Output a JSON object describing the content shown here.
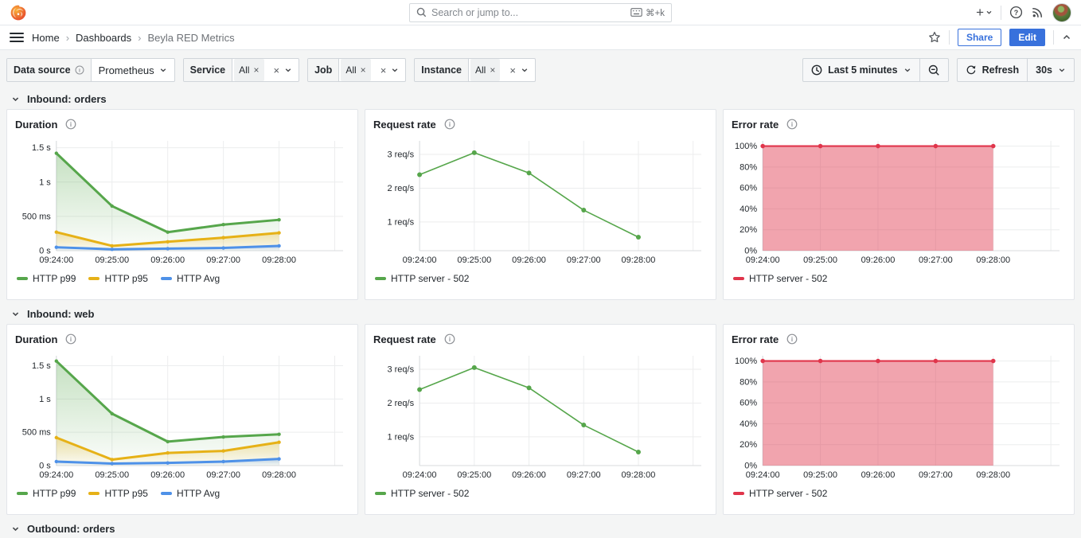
{
  "colors": {
    "accent_blue": "#3871DC",
    "brand_orange": "#F05A28"
  },
  "icons": {
    "close": "×",
    "plus": "+",
    "help": "?",
    "shortcut_cmd": "⌘+k"
  },
  "topbar": {
    "search_placeholder": "Search or jump to...",
    "search_shortcut": "⌘+k"
  },
  "breadcrumb": {
    "items": [
      "Home",
      "Dashboards",
      "Beyla RED Metrics"
    ],
    "separator": "›"
  },
  "actions": {
    "share": "Share",
    "edit": "Edit"
  },
  "filterbar": {
    "datasource": {
      "label": "Data source",
      "value": "Prometheus"
    },
    "variables": [
      {
        "label": "Service",
        "chip": "All"
      },
      {
        "label": "Job",
        "chip": "All"
      },
      {
        "label": "Instance",
        "chip": "All"
      }
    ],
    "time": {
      "range": "Last 5 minutes",
      "refresh": "Refresh",
      "interval": "30s"
    }
  },
  "rows": [
    {
      "title": "Inbound: orders",
      "charts": [
        0,
        1,
        2
      ]
    },
    {
      "title": "Inbound: web",
      "charts": [
        3,
        4,
        5
      ]
    },
    {
      "title": "Outbound: orders",
      "charts": []
    }
  ],
  "chart_data": [
    {
      "type": "line",
      "title": "Duration",
      "row": "Inbound: orders",
      "x": [
        "09:24:00",
        "09:25:00",
        "09:26:00",
        "09:27:00",
        "09:28:00"
      ],
      "series": [
        {
          "name": "HTTP p99",
          "color": "#56A64B",
          "values": [
            1.42,
            0.65,
            0.27,
            0.38,
            0.45
          ]
        },
        {
          "name": "HTTP p95",
          "color": "#E6B117",
          "values": [
            0.27,
            0.07,
            0.13,
            0.19,
            0.26
          ]
        },
        {
          "name": "HTTP Avg",
          "color": "#4E91E8",
          "values": [
            0.05,
            0.02,
            0.03,
            0.04,
            0.07
          ]
        }
      ],
      "yticks": [
        {
          "v": 0,
          "label": "0 s"
        },
        {
          "v": 0.5,
          "label": "500 ms"
        },
        {
          "v": 1,
          "label": "1 s"
        },
        {
          "v": 1.5,
          "label": "1.5 s"
        }
      ],
      "ylim": [
        0,
        1.6
      ],
      "fill": "gradient",
      "line_width": 3,
      "marker_r": 2.2,
      "grid": true
    },
    {
      "type": "line",
      "title": "Request rate",
      "row": "Inbound: orders",
      "x": [
        "09:24:00",
        "09:25:00",
        "09:26:00",
        "09:27:00",
        "09:28:00"
      ],
      "series": [
        {
          "name": "HTTP server - 502",
          "color": "#56A64B",
          "values": [
            2.4,
            3.05,
            2.45,
            1.35,
            0.55
          ]
        }
      ],
      "yticks": [
        {
          "v": 1,
          "label": "1 req/s"
        },
        {
          "v": 2,
          "label": "2 req/s"
        },
        {
          "v": 3,
          "label": "3 req/s"
        }
      ],
      "ylim": [
        0.15,
        3.4
      ],
      "fill": "none",
      "line_width": 1.6,
      "marker_r": 3,
      "grid": true
    },
    {
      "type": "line",
      "title": "Error rate",
      "row": "Inbound: orders",
      "x": [
        "09:24:00",
        "09:25:00",
        "09:26:00",
        "09:27:00",
        "09:28:00"
      ],
      "series": [
        {
          "name": "HTTP server - 502",
          "color": "#E0354B",
          "values": [
            100,
            100,
            100,
            100,
            100
          ]
        }
      ],
      "yticks": [
        {
          "v": 0,
          "label": "0%"
        },
        {
          "v": 20,
          "label": "20%"
        },
        {
          "v": 40,
          "label": "40%"
        },
        {
          "v": 60,
          "label": "60%"
        },
        {
          "v": 80,
          "label": "80%"
        },
        {
          "v": 100,
          "label": "100%"
        }
      ],
      "ylim": [
        0,
        105
      ],
      "fill": "solid",
      "fill_opacity": 0.45,
      "line_width": 2.2,
      "marker_r": 2.8,
      "grid": true
    },
    {
      "type": "line",
      "title": "Duration",
      "row": "Inbound: web",
      "x": [
        "09:24:00",
        "09:25:00",
        "09:26:00",
        "09:27:00",
        "09:28:00"
      ],
      "series": [
        {
          "name": "HTTP p99",
          "color": "#56A64B",
          "values": [
            1.57,
            0.78,
            0.36,
            0.43,
            0.47
          ]
        },
        {
          "name": "HTTP p95",
          "color": "#E6B117",
          "values": [
            0.42,
            0.09,
            0.19,
            0.22,
            0.35
          ]
        },
        {
          "name": "HTTP Avg",
          "color": "#4E91E8",
          "values": [
            0.06,
            0.03,
            0.04,
            0.06,
            0.1
          ]
        }
      ],
      "yticks": [
        {
          "v": 0,
          "label": "0 s"
        },
        {
          "v": 0.5,
          "label": "500 ms"
        },
        {
          "v": 1,
          "label": "1 s"
        },
        {
          "v": 1.5,
          "label": "1.5 s"
        }
      ],
      "ylim": [
        0,
        1.65
      ],
      "fill": "gradient",
      "line_width": 3,
      "marker_r": 2.2,
      "grid": true
    },
    {
      "type": "line",
      "title": "Request rate",
      "row": "Inbound: web",
      "x": [
        "09:24:00",
        "09:25:00",
        "09:26:00",
        "09:27:00",
        "09:28:00"
      ],
      "series": [
        {
          "name": "HTTP server - 502",
          "color": "#56A64B",
          "values": [
            2.4,
            3.05,
            2.45,
            1.35,
            0.55
          ]
        }
      ],
      "yticks": [
        {
          "v": 1,
          "label": "1 req/s"
        },
        {
          "v": 2,
          "label": "2 req/s"
        },
        {
          "v": 3,
          "label": "3 req/s"
        }
      ],
      "ylim": [
        0.15,
        3.4
      ],
      "fill": "none",
      "line_width": 1.6,
      "marker_r": 3,
      "grid": true
    },
    {
      "type": "line",
      "title": "Error rate",
      "row": "Inbound: web",
      "x": [
        "09:24:00",
        "09:25:00",
        "09:26:00",
        "09:27:00",
        "09:28:00"
      ],
      "series": [
        {
          "name": "HTTP server - 502",
          "color": "#E0354B",
          "values": [
            100,
            100,
            100,
            100,
            100
          ]
        }
      ],
      "yticks": [
        {
          "v": 0,
          "label": "0%"
        },
        {
          "v": 20,
          "label": "20%"
        },
        {
          "v": 40,
          "label": "40%"
        },
        {
          "v": 60,
          "label": "60%"
        },
        {
          "v": 80,
          "label": "80%"
        },
        {
          "v": 100,
          "label": "100%"
        }
      ],
      "ylim": [
        0,
        105
      ],
      "fill": "solid",
      "fill_opacity": 0.45,
      "line_width": 2.2,
      "marker_r": 2.8,
      "grid": true
    }
  ]
}
